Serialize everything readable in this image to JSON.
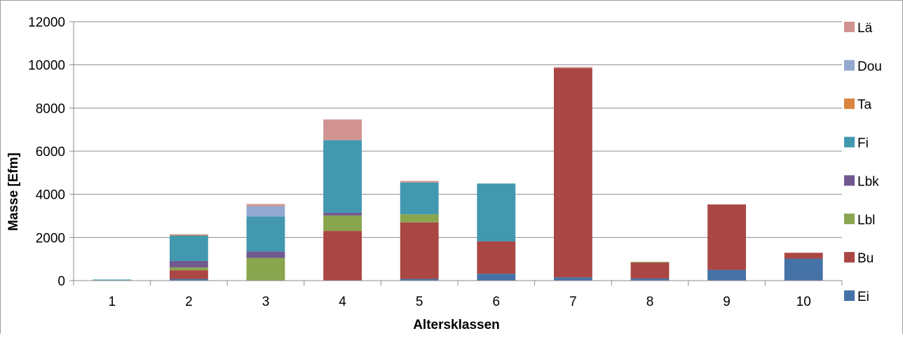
{
  "chart_data": {
    "type": "bar",
    "stacked": true,
    "title": "",
    "xlabel": "Altersklassen",
    "ylabel": "Masse [Efm]",
    "ylim": [
      0,
      12000
    ],
    "yticks": [
      "0",
      "2000",
      "4000",
      "6000",
      "8000",
      "10000",
      "12000"
    ],
    "grid": true,
    "legend_position": "right",
    "categories": [
      "1",
      "2",
      "3",
      "4",
      "5",
      "6",
      "7",
      "8",
      "9",
      "10"
    ],
    "series": [
      {
        "name": "Ei",
        "color": "#4572a7",
        "values": [
          20,
          80,
          0,
          0,
          80,
          320,
          150,
          100,
          500,
          1020
        ]
      },
      {
        "name": "Bu",
        "color": "#aa4643",
        "values": [
          0,
          400,
          0,
          2300,
          2620,
          1500,
          9700,
          740,
          3030,
          270
        ]
      },
      {
        "name": "Lbl",
        "color": "#89a54e",
        "values": [
          0,
          130,
          1050,
          720,
          370,
          0,
          0,
          30,
          0,
          0
        ]
      },
      {
        "name": "Lbk",
        "color": "#71588f",
        "values": [
          0,
          300,
          300,
          130,
          0,
          0,
          0,
          0,
          0,
          0
        ]
      },
      {
        "name": "Fi",
        "color": "#4198af",
        "values": [
          30,
          1180,
          1620,
          3360,
          1480,
          2680,
          0,
          0,
          0,
          0
        ]
      },
      {
        "name": "Ta",
        "color": "#db843d",
        "values": [
          0,
          20,
          0,
          0,
          0,
          0,
          0,
          0,
          0,
          0
        ]
      },
      {
        "name": "Dou",
        "color": "#93a9cf",
        "values": [
          0,
          0,
          480,
          0,
          0,
          0,
          0,
          0,
          0,
          0
        ]
      },
      {
        "name": "Lä",
        "color": "#d19392",
        "values": [
          0,
          40,
          100,
          960,
          70,
          0,
          50,
          0,
          0,
          0
        ]
      }
    ]
  }
}
